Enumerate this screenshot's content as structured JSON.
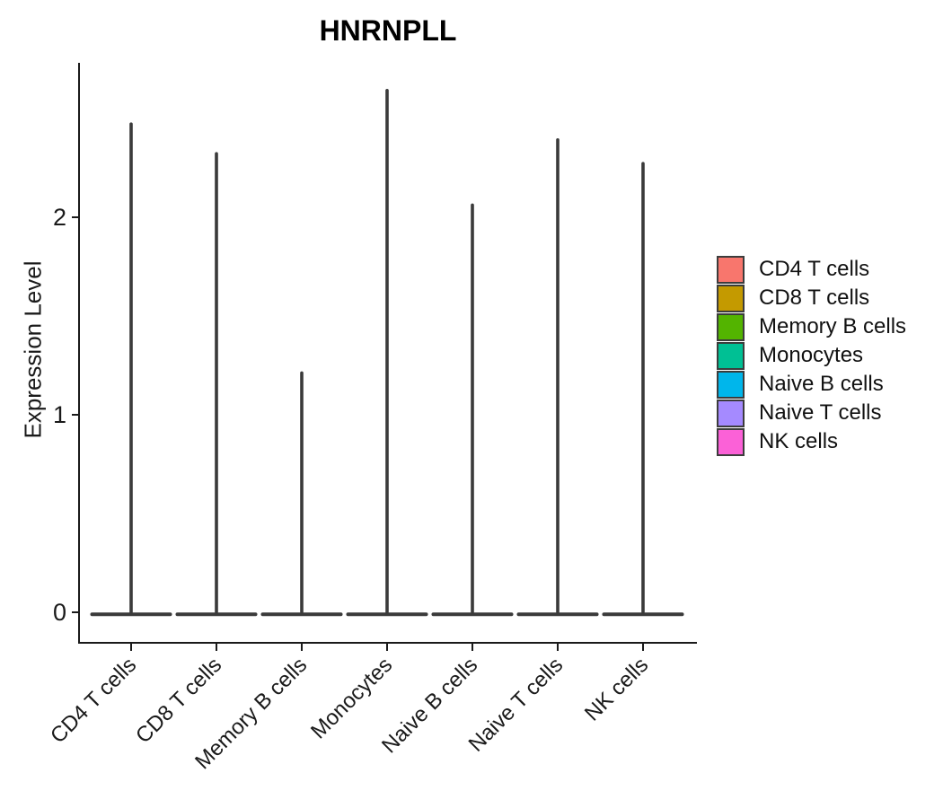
{
  "chart_data": {
    "type": "violin",
    "title": "HNRNPLL",
    "ylabel": "Expression Level",
    "xlabel": "",
    "yticks": [
      0,
      1,
      2
    ],
    "ylim": [
      0,
      2.75
    ],
    "grid": false,
    "legend_position": "right",
    "violin_shape_note": "density concentrated at 0: wide flat base at y=0 with a thin spike up to the max expression value",
    "categories": [
      "CD4 T cells",
      "CD8 T cells",
      "Memory B cells",
      "Monocytes",
      "Naive B cells",
      "Naive T cells",
      "NK cells"
    ],
    "violins": [
      {
        "label": "CD4 T cells",
        "color": "#F8766D",
        "max_expression": 2.48
      },
      {
        "label": "CD8 T cells",
        "color": "#C49A00",
        "max_expression": 2.33
      },
      {
        "label": "Memory B cells",
        "color": "#53B400",
        "max_expression": 1.22
      },
      {
        "label": "Monocytes",
        "color": "#00C094",
        "max_expression": 2.65
      },
      {
        "label": "Naive B cells",
        "color": "#00B6EB",
        "max_expression": 2.07
      },
      {
        "label": "Naive T cells",
        "color": "#A58AFF",
        "max_expression": 2.4
      },
      {
        "label": "NK cells",
        "color": "#FB61D7",
        "max_expression": 2.28
      }
    ],
    "violin_draw_color": "#3A3A3A",
    "axis_color": "#1A1A1A"
  }
}
